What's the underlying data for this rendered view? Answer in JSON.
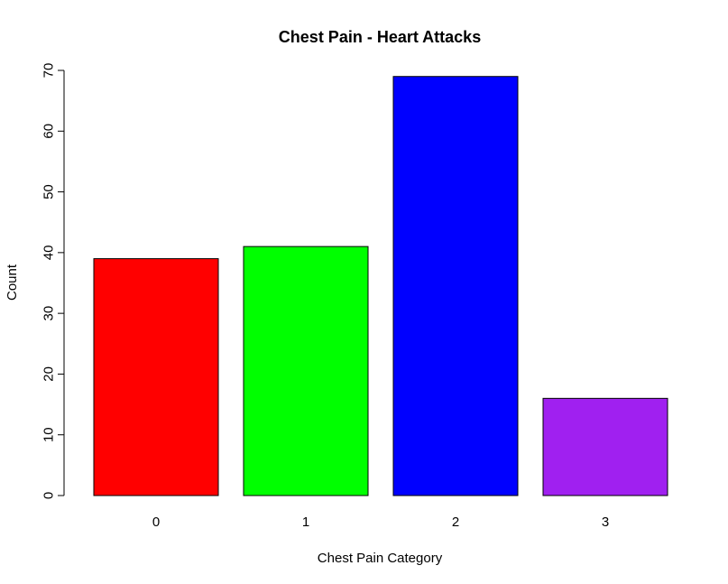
{
  "chart_data": {
    "type": "bar",
    "title": "Chest Pain - Heart Attacks",
    "xlabel": "Chest Pain Category",
    "ylabel": "Count",
    "categories": [
      "0",
      "1",
      "2",
      "3"
    ],
    "values": [
      39,
      41,
      69,
      16
    ],
    "colors": [
      "#ff0000",
      "#00ff00",
      "#0000ff",
      "#a020f0"
    ],
    "ylim": [
      0,
      70
    ],
    "yticks": [
      0,
      10,
      20,
      30,
      40,
      50,
      60,
      70
    ],
    "grid": false,
    "legend": "none"
  }
}
